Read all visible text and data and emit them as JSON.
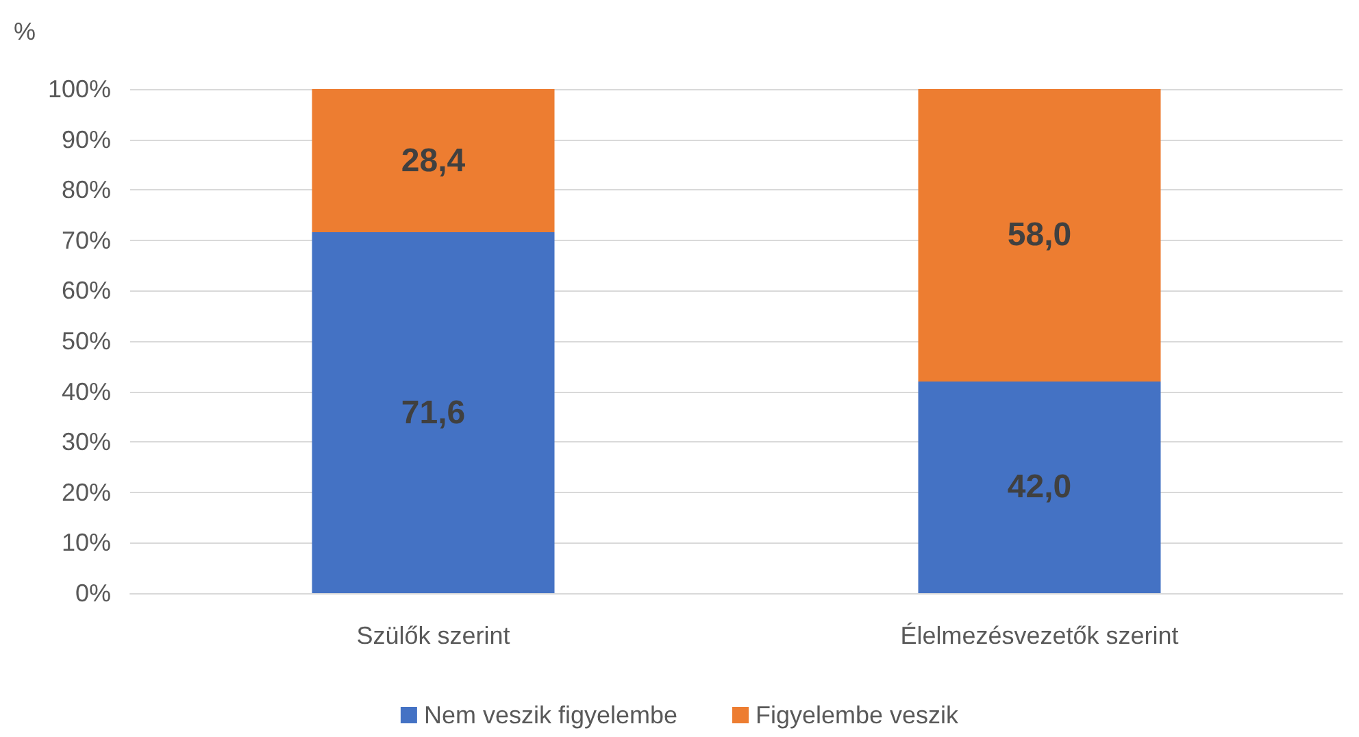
{
  "chart_data": {
    "type": "bar",
    "stacked": true,
    "ylabel": "%",
    "categories": [
      "Szülők szerint",
      "Élelmezésvezetők szerint"
    ],
    "series": [
      {
        "name": "Nem veszik figyelembe",
        "color": "#4472c4",
        "values": [
          71.6,
          42.0
        ],
        "value_labels": [
          "71,6",
          "42,0"
        ]
      },
      {
        "name": "Figyelembe veszik",
        "color": "#ed7d31",
        "values": [
          28.4,
          58.0
        ],
        "value_labels": [
          "28,4",
          "58,0"
        ]
      }
    ],
    "ylim": [
      0,
      100
    ],
    "yticks": [
      {
        "value": 0,
        "label": "0%"
      },
      {
        "value": 10,
        "label": "10%"
      },
      {
        "value": 20,
        "label": "20%"
      },
      {
        "value": 30,
        "label": "30%"
      },
      {
        "value": 40,
        "label": "40%"
      },
      {
        "value": 50,
        "label": "50%"
      },
      {
        "value": 60,
        "label": "60%"
      },
      {
        "value": 70,
        "label": "70%"
      },
      {
        "value": 80,
        "label": "80%"
      },
      {
        "value": 90,
        "label": "90%"
      },
      {
        "value": 100,
        "label": "100%"
      }
    ],
    "grid": "y",
    "legend": "bottom"
  }
}
